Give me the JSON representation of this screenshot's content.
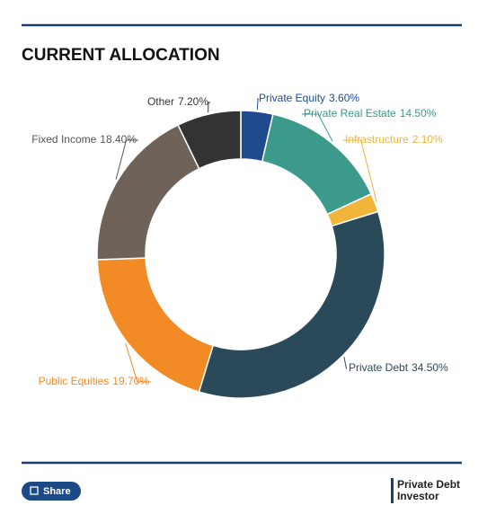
{
  "chart_data": {
    "type": "pie",
    "title": "CURRENT ALLOCATION",
    "categories": [
      "Private Equity",
      "Private Real Estate",
      "Infrastructure",
      "Private Debt",
      "Public Equities",
      "Fixed Income",
      "Other"
    ],
    "values": [
      3.6,
      14.5,
      2.1,
      34.5,
      19.7,
      18.4,
      7.2
    ],
    "value_labels": [
      "3.60%",
      "14.50%",
      "2.10%",
      "34.50%",
      "19.70%",
      "18.40%",
      "7.20%"
    ],
    "colors": [
      "#1f4b8e",
      "#3b9a8b",
      "#f2b53b",
      "#2b4a59",
      "#f28a25",
      "#6e6259",
      "#333333"
    ]
  },
  "footer": {
    "share": "Share",
    "logo": [
      "Private Debt",
      "Investor"
    ]
  }
}
